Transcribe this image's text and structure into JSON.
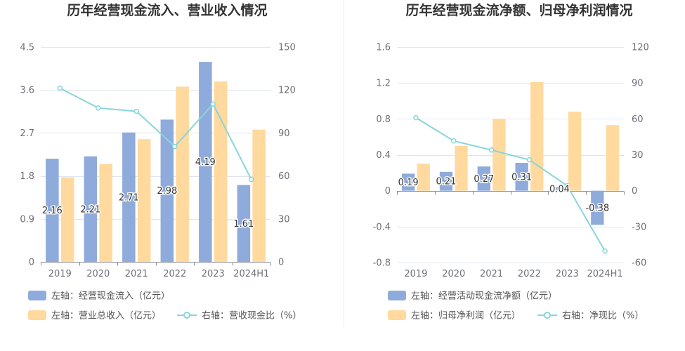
{
  "chart_data": [
    {
      "type": "bar",
      "title": "历年经营现金流入、营业收入情况",
      "categories": [
        "2019",
        "2020",
        "2021",
        "2022",
        "2023",
        "2024H1"
      ],
      "y_left": {
        "ticks": [
          0,
          0.9,
          1.8,
          2.7,
          3.6,
          4.5
        ],
        "ylim": [
          0,
          4.5
        ]
      },
      "y_right": {
        "ticks": [
          0,
          30,
          60,
          90,
          120,
          150
        ],
        "ylim": [
          0,
          150
        ]
      },
      "grid": true,
      "legend_position": "bottom-left",
      "series": [
        {
          "name": "左轴：经营现金流入（亿元）",
          "type": "bar",
          "axis": "left",
          "color": "#8FABDB",
          "show_labels": true,
          "values": [
            2.16,
            2.21,
            2.71,
            2.98,
            4.19,
            1.61
          ]
        },
        {
          "name": "左轴：营业总收入（亿元）",
          "type": "bar",
          "axis": "left",
          "color": "#FFD99D",
          "show_labels": false,
          "values": [
            1.77,
            2.05,
            2.57,
            3.67,
            3.78,
            2.77
          ]
        },
        {
          "name": "右轴：营收现金比（%）",
          "type": "line",
          "axis": "right",
          "color": "#88D6DA",
          "values": [
            121.3,
            107.5,
            105.1,
            80.6,
            110.2,
            57.5
          ]
        }
      ]
    },
    {
      "type": "bar",
      "title": "历年经营现金流净额、归母净利润情况",
      "categories": [
        "2019",
        "2020",
        "2021",
        "2022",
        "2023",
        "2024H1"
      ],
      "y_left": {
        "ticks": [
          -0.8,
          -0.4,
          0,
          0.4,
          0.8,
          1.2,
          1.6
        ],
        "ylim": [
          -0.8,
          1.6
        ]
      },
      "y_right": {
        "ticks": [
          -60,
          -30,
          0,
          30,
          60,
          90,
          120
        ],
        "ylim": [
          -60,
          120
        ]
      },
      "grid": true,
      "legend_position": "bottom-left",
      "series": [
        {
          "name": "左轴：经营活动现金流净额（亿元）",
          "type": "bar",
          "axis": "left",
          "color": "#8FABDB",
          "show_labels": true,
          "values": [
            0.19,
            0.21,
            0.27,
            0.31,
            0.04,
            -0.38
          ]
        },
        {
          "name": "左轴：归母净利润（亿元）",
          "type": "bar",
          "axis": "left",
          "color": "#FFD99D",
          "show_labels": false,
          "values": [
            0.3,
            0.5,
            0.8,
            1.21,
            0.88,
            0.73
          ]
        },
        {
          "name": "右轴：净现比（%）",
          "type": "line",
          "axis": "right",
          "color": "#88D6DA",
          "values": [
            61.0,
            41.6,
            34.0,
            25.8,
            4.1,
            -50.4
          ]
        }
      ]
    }
  ]
}
